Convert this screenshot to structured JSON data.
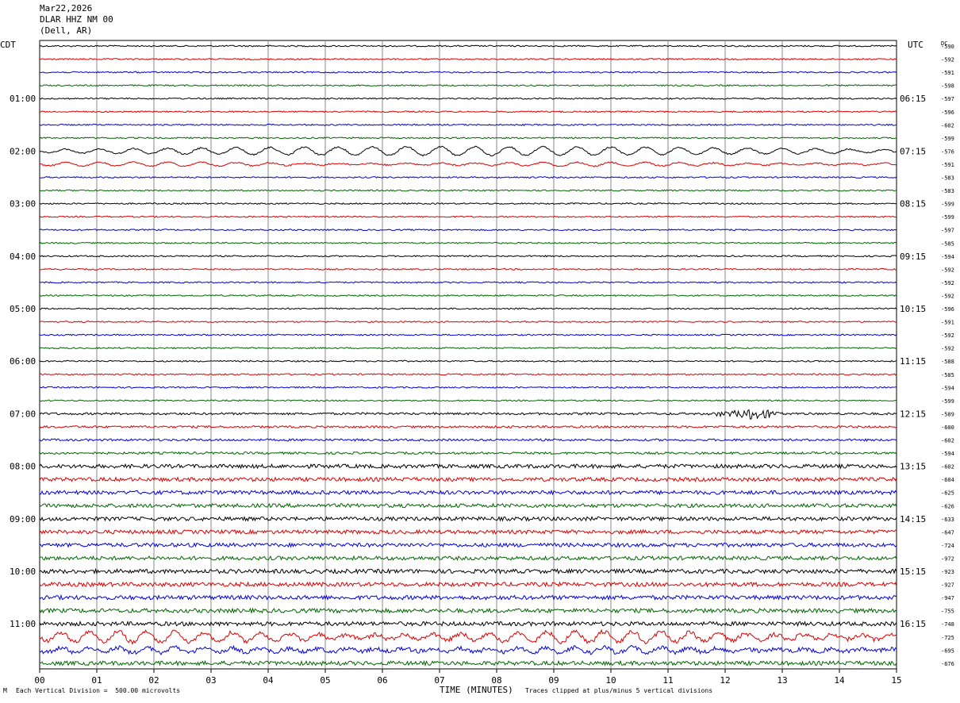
{
  "header": {
    "date": "Mar22,2026",
    "station": "DLAR HHZ NM 00",
    "location": "(Dell, AR)"
  },
  "chart_data": {
    "type": "line",
    "title": "",
    "left_axis_label": "CDT",
    "right_axis_label": "UTC",
    "dc_label": "DC",
    "xlabel": "TIME (MINUTES)",
    "x_ticks": [
      "00",
      "01",
      "02",
      "03",
      "04",
      "05",
      "06",
      "07",
      "08",
      "09",
      "10",
      "11",
      "12",
      "13",
      "14",
      "15"
    ],
    "xlim": [
      0,
      15
    ],
    "trace_colors": [
      "#000000",
      "#dd0000",
      "#0000dd",
      "#006600"
    ],
    "left_hour_labels": [
      "01:00",
      "02:00",
      "03:00",
      "04:00",
      "05:00",
      "06:00",
      "07:00",
      "08:00",
      "09:00",
      "10:00",
      "11:00"
    ],
    "right_hour_labels": [
      "06:15",
      "07:15",
      "08:15",
      "09:15",
      "10:15",
      "11:15",
      "12:15",
      "13:15",
      "14:15",
      "15:15",
      "16:15"
    ],
    "dc_offsets": [
      -590,
      -592,
      -591,
      -598,
      -597,
      -596,
      -602,
      -599,
      -576,
      -591,
      -583,
      -583,
      -599,
      -599,
      -597,
      -585,
      -594,
      -592,
      -592,
      -592,
      -596,
      -591,
      -592,
      -592,
      -588,
      -585,
      -594,
      -599,
      -589,
      -600,
      -602,
      -594,
      -602,
      -604,
      -625,
      -626,
      -633,
      -647,
      -724,
      -972,
      -923,
      -927,
      -947,
      -755,
      -748,
      -725,
      -695,
      -676
    ],
    "grid": true
  },
  "footer": {
    "left_mark": "M",
    "scale_note": "Each Vertical Division =  500.00 microvolts",
    "clip_note": "Traces clipped at plus/minus 5 vertical divisions"
  }
}
